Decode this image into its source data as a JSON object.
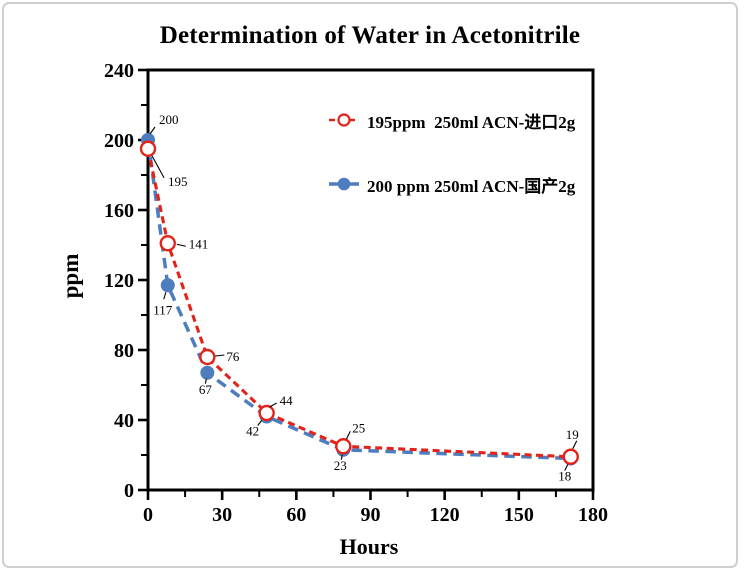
{
  "frame": {
    "background": "#ffffff",
    "border_color": "#cfcfcf"
  },
  "chart_data": {
    "type": "line",
    "title": "Determination of Water in Acetonitrile",
    "xlabel": "Hours",
    "ylabel": "ppm",
    "xlim": [
      0,
      180
    ],
    "ylim": [
      0,
      240
    ],
    "x_major_ticks": [
      0,
      30,
      60,
      90,
      120,
      150,
      180
    ],
    "x_minor_ticks": [
      15,
      45,
      75,
      105,
      135,
      165
    ],
    "y_major_ticks": [
      0,
      40,
      80,
      120,
      160,
      200,
      240
    ],
    "y_minor_ticks": [
      20,
      60,
      100,
      140,
      180,
      220
    ],
    "grid": false,
    "legend_position": "inside-top-right",
    "x_hours": [
      0,
      8,
      24,
      48,
      79,
      171
    ],
    "series": [
      {
        "name": "195ppm  250ml ACN-进口2g",
        "color": "#e2231a",
        "marker": "open-circle",
        "line_style": "dashed",
        "dasharray": "7 4.5",
        "values": [
          195,
          141,
          76,
          44,
          25,
          19
        ],
        "label_anchors": [
          "start",
          "start",
          "start",
          "start",
          "start",
          "start"
        ],
        "label_offsets": [
          [
            20,
            37
          ],
          [
            21,
            5
          ],
          [
            19,
            4
          ],
          [
            13,
            -8
          ],
          [
            9,
            -14
          ],
          [
            -5,
            -18
          ]
        ],
        "leaders": [
          [
            [
              4,
              7
            ],
            [
              16,
              29
            ]
          ],
          [
            [
              9,
              1
            ],
            [
              18,
              3
            ]
          ],
          [
            [
              8,
              -1
            ],
            [
              17,
              -2
            ]
          ],
          [
            [
              3,
              -6
            ],
            [
              10,
              -10
            ]
          ],
          [
            [
              3,
              -7
            ],
            [
              7,
              -15
            ]
          ],
          [
            [
              2,
              -8
            ],
            [
              6,
              -16
            ]
          ]
        ]
      },
      {
        "name": "200 ppm 250ml ACN-国产2g",
        "color": "#4e7dbf",
        "marker": "filled-circle",
        "line_style": "dashed",
        "dasharray": "10.5 6.5",
        "values": [
          200,
          117,
          67,
          42,
          23,
          18
        ],
        "label_anchors": [
          "start",
          "middle",
          "middle",
          "middle",
          "middle",
          "middle"
        ],
        "label_offsets": [
          [
            11,
            -16
          ],
          [
            -5,
            29
          ],
          [
            -2,
            21
          ],
          [
            -14,
            19
          ],
          [
            -3,
            20
          ],
          [
            -6,
            22
          ]
        ],
        "leaders": [
          [
            [
              2,
              -6
            ],
            [
              7,
              -13
            ]
          ],
          [
            [
              -2,
              7
            ],
            [
              -4,
              14
            ]
          ],
          [
            [
              -1,
              6
            ],
            [
              -2,
              11
            ]
          ],
          [
            [
              -5,
              4
            ],
            [
              -9,
              9
            ]
          ],
          [
            [
              -1,
              5
            ],
            [
              -2,
              10
            ]
          ],
          [
            [
              -3,
              6
            ],
            [
              -6,
              12
            ]
          ]
        ]
      }
    ]
  }
}
